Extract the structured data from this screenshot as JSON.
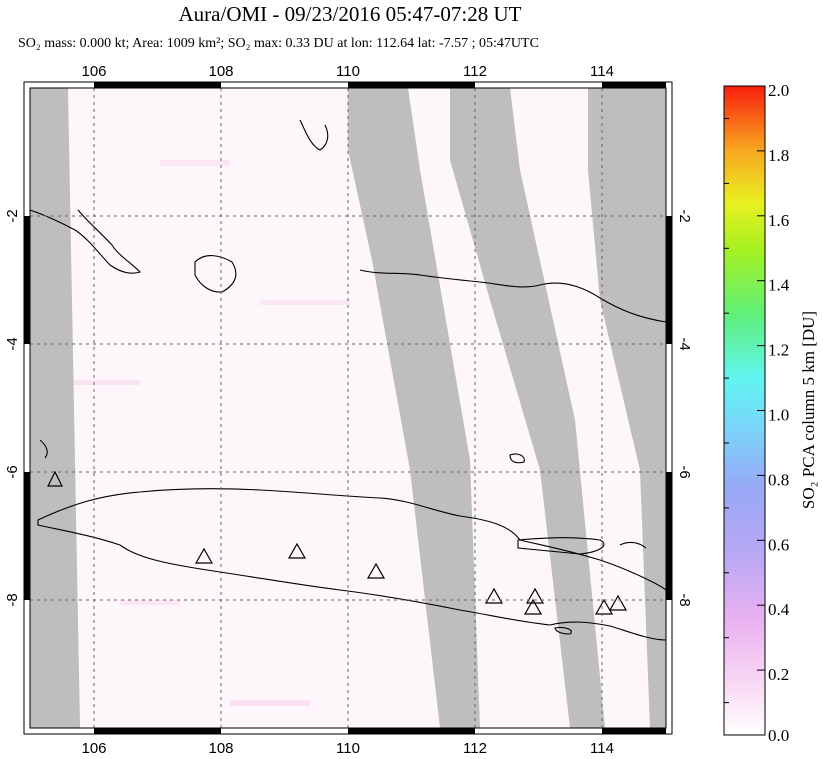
{
  "title": "Aura/OMI - 09/23/2016 05:47-07:28 UT",
  "subtitle": "SO₂ mass: 0.000 kt; Area: 1009 km²; SO₂ max: 0.33 DU at lon: 112.64 lat: -7.57 ; 05:47UTC",
  "map": {
    "lon_ticks": [
      "106",
      "108",
      "110",
      "112",
      "114"
    ],
    "lat_ticks": [
      "-2",
      "-4",
      "-6",
      "-8"
    ],
    "lat_ticks_right": [
      "-2",
      "-4",
      "-6",
      "-8"
    ],
    "lon_range": [
      105,
      115
    ],
    "lat_range": [
      -10,
      0
    ],
    "no_data_color": "#bebebe",
    "land_outline_color": "#000000"
  },
  "colorbar": {
    "label": "SO₂ PCA column 5 km [DU]",
    "tick_labels": [
      "2.0",
      "1.8",
      "1.6",
      "1.4",
      "1.2",
      "1.0",
      "0.8",
      "0.6",
      "0.4",
      "0.2",
      "0.0"
    ],
    "range": [
      0,
      2.0
    ],
    "colors": [
      "#ffffff",
      "#f6c8f0",
      "#c8a0f0",
      "#9a9af2",
      "#76c8f8",
      "#5af0f0",
      "#60f080",
      "#98f020",
      "#e8f020",
      "#f8b020",
      "#f86018",
      "#f82010"
    ]
  }
}
